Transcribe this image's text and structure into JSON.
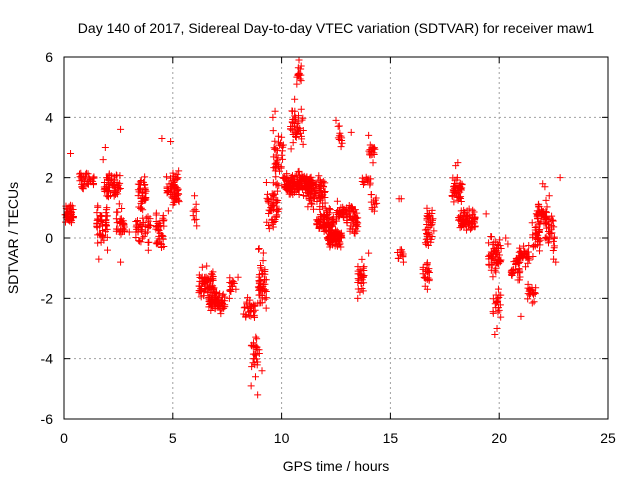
{
  "chart_data": {
    "type": "scatter",
    "title": "Day 140 of 2017, Sidereal Day-to-day VTEC variation (SDTVAR) for receiver maw1",
    "xlabel": "GPS time / hours",
    "ylabel": "SDTVAR / TECUs",
    "xlim": [
      0,
      25
    ],
    "ylim": [
      -6,
      6
    ],
    "xticks": [
      0,
      5,
      10,
      15,
      20,
      25
    ],
    "yticks": [
      -6,
      -4,
      -2,
      0,
      2,
      4,
      6
    ],
    "grid": true,
    "marker": "plus",
    "color": "#ff0000",
    "clusters": [
      {
        "x0": 0.05,
        "x1": 0.45,
        "center": 0.8,
        "spread": 0.5,
        "n": 40
      },
      {
        "x0": 0.7,
        "x1": 1.4,
        "center": 1.9,
        "spread": 0.4,
        "n": 35
      },
      {
        "x0": 1.5,
        "x1": 2.0,
        "center": 0.5,
        "spread": 1.0,
        "n": 45
      },
      {
        "x0": 1.8,
        "x1": 2.6,
        "center": 1.7,
        "spread": 0.6,
        "n": 55
      },
      {
        "x0": 2.4,
        "x1": 2.8,
        "center": 0.6,
        "spread": 0.8,
        "n": 30
      },
      {
        "x0": 3.4,
        "x1": 3.8,
        "center": 1.5,
        "spread": 0.8,
        "n": 35
      },
      {
        "x0": 3.3,
        "x1": 4.0,
        "center": 0.3,
        "spread": 0.8,
        "n": 40
      },
      {
        "x0": 4.2,
        "x1": 4.6,
        "center": 0.2,
        "spread": 0.9,
        "n": 40
      },
      {
        "x0": 4.7,
        "x1": 5.3,
        "center": 1.6,
        "spread": 0.9,
        "n": 60
      },
      {
        "x0": 5.9,
        "x1": 6.1,
        "center": 0.9,
        "spread": 0.4,
        "n": 6
      },
      {
        "x0": 6.2,
        "x1": 6.9,
        "center": -1.5,
        "spread": 0.8,
        "n": 70
      },
      {
        "x0": 6.6,
        "x1": 7.4,
        "center": -2.1,
        "spread": 0.5,
        "n": 70
      },
      {
        "x0": 7.6,
        "x1": 7.9,
        "center": -1.6,
        "spread": 0.5,
        "n": 12
      },
      {
        "x0": 8.2,
        "x1": 8.8,
        "center": -2.3,
        "spread": 0.5,
        "n": 30
      },
      {
        "x0": 8.6,
        "x1": 9.0,
        "center": -3.8,
        "spread": 0.9,
        "n": 25
      },
      {
        "x0": 8.9,
        "x1": 9.3,
        "center": -1.5,
        "spread": 1.5,
        "n": 50
      },
      {
        "x0": 9.3,
        "x1": 9.9,
        "center": 1.0,
        "spread": 1.0,
        "n": 50
      },
      {
        "x0": 9.6,
        "x1": 10.1,
        "center": 2.6,
        "spread": 1.2,
        "n": 40
      },
      {
        "x0": 10.1,
        "x1": 11.4,
        "center": 1.8,
        "spread": 0.5,
        "n": 160
      },
      {
        "x0": 10.4,
        "x1": 11.0,
        "center": 3.6,
        "spread": 1.0,
        "n": 40
      },
      {
        "x0": 10.7,
        "x1": 10.9,
        "center": 5.4,
        "spread": 0.4,
        "n": 12
      },
      {
        "x0": 11.2,
        "x1": 12.0,
        "center": 1.5,
        "spread": 0.8,
        "n": 80
      },
      {
        "x0": 11.6,
        "x1": 12.4,
        "center": 0.6,
        "spread": 0.6,
        "n": 70
      },
      {
        "x0": 12.1,
        "x1": 12.8,
        "center": 0.0,
        "spread": 0.4,
        "n": 80
      },
      {
        "x0": 12.5,
        "x1": 13.3,
        "center": 0.8,
        "spread": 0.5,
        "n": 50
      },
      {
        "x0": 12.6,
        "x1": 12.8,
        "center": 3.2,
        "spread": 0.6,
        "n": 10
      },
      {
        "x0": 13.1,
        "x1": 13.5,
        "center": 0.5,
        "spread": 0.6,
        "n": 30
      },
      {
        "x0": 13.5,
        "x1": 13.8,
        "center": -1.2,
        "spread": 0.7,
        "n": 25
      },
      {
        "x0": 13.7,
        "x1": 14.1,
        "center": 1.9,
        "spread": 0.3,
        "n": 12
      },
      {
        "x0": 14.0,
        "x1": 14.3,
        "center": 2.9,
        "spread": 0.5,
        "n": 18
      },
      {
        "x0": 14.1,
        "x1": 14.4,
        "center": 1.2,
        "spread": 0.6,
        "n": 12
      },
      {
        "x0": 15.3,
        "x1": 15.6,
        "center": -0.5,
        "spread": 0.5,
        "n": 10
      },
      {
        "x0": 16.5,
        "x1": 16.8,
        "center": -1.2,
        "spread": 0.5,
        "n": 20
      },
      {
        "x0": 16.6,
        "x1": 17.0,
        "center": 0.4,
        "spread": 0.9,
        "n": 40
      },
      {
        "x0": 17.8,
        "x1": 18.3,
        "center": 1.6,
        "spread": 0.6,
        "n": 45
      },
      {
        "x0": 18.1,
        "x1": 18.9,
        "center": 0.6,
        "spread": 0.5,
        "n": 70
      },
      {
        "x0": 19.5,
        "x1": 20.1,
        "center": -0.6,
        "spread": 0.9,
        "n": 55
      },
      {
        "x0": 19.7,
        "x1": 20.1,
        "center": -2.2,
        "spread": 0.7,
        "n": 18
      },
      {
        "x0": 20.5,
        "x1": 21.0,
        "center": -1.0,
        "spread": 0.6,
        "n": 30
      },
      {
        "x0": 20.9,
        "x1": 21.4,
        "center": -0.6,
        "spread": 0.6,
        "n": 30
      },
      {
        "x0": 21.3,
        "x1": 21.7,
        "center": -1.8,
        "spread": 0.6,
        "n": 20
      },
      {
        "x0": 21.5,
        "x1": 21.9,
        "center": 0.0,
        "spread": 0.8,
        "n": 30
      },
      {
        "x0": 21.7,
        "x1": 22.2,
        "center": 0.8,
        "spread": 0.8,
        "n": 40
      },
      {
        "x0": 22.1,
        "x1": 22.6,
        "center": 0.2,
        "spread": 0.8,
        "n": 30
      }
    ],
    "points": [
      [
        0.3,
        2.8
      ],
      [
        1.8,
        2.6
      ],
      [
        1.9,
        3.0
      ],
      [
        2.6,
        3.6
      ],
      [
        4.5,
        3.3
      ],
      [
        4.9,
        3.2
      ],
      [
        1.6,
        -0.7
      ],
      [
        2.6,
        -0.8
      ],
      [
        2.0,
        -0.4
      ],
      [
        6.0,
        1.4
      ],
      [
        8.6,
        -4.9
      ],
      [
        8.9,
        -5.2
      ],
      [
        9.1,
        -4.4
      ],
      [
        8.8,
        -4.6
      ],
      [
        9.6,
        4.0
      ],
      [
        9.7,
        4.2
      ],
      [
        10.5,
        4.2
      ],
      [
        10.6,
        4.6
      ],
      [
        10.8,
        5.9
      ],
      [
        10.9,
        5.7
      ],
      [
        10.7,
        5.1
      ],
      [
        12.5,
        3.9
      ],
      [
        12.6,
        3.7
      ],
      [
        13.2,
        3.5
      ],
      [
        14.0,
        3.4
      ],
      [
        13.5,
        -2.0
      ],
      [
        13.6,
        -1.8
      ],
      [
        14.0,
        -0.5
      ],
      [
        15.4,
        1.3
      ],
      [
        15.5,
        1.3
      ],
      [
        15.6,
        -0.8
      ],
      [
        16.6,
        -1.6
      ],
      [
        16.7,
        -1.7
      ],
      [
        19.8,
        -3.2
      ],
      [
        19.9,
        -3.0
      ],
      [
        20.0,
        -2.4
      ],
      [
        18.0,
        2.4
      ],
      [
        18.1,
        2.5
      ],
      [
        19.4,
        0.8
      ],
      [
        20.4,
        -0.2
      ],
      [
        20.3,
        0.0
      ],
      [
        21.0,
        -2.6
      ],
      [
        21.8,
        1.1
      ],
      [
        22.0,
        1.8
      ],
      [
        22.1,
        1.7
      ],
      [
        22.8,
        2.0
      ],
      [
        22.3,
        1.4
      ],
      [
        22.6,
        -0.8
      ],
      [
        22.5,
        -0.7
      ],
      [
        6.0,
        0.6
      ],
      [
        6.1,
        0.4
      ],
      [
        7.9,
        -1.7
      ],
      [
        8.0,
        -1.3
      ],
      [
        7.6,
        -2.0
      ],
      [
        3.0,
        0.2
      ]
    ]
  }
}
